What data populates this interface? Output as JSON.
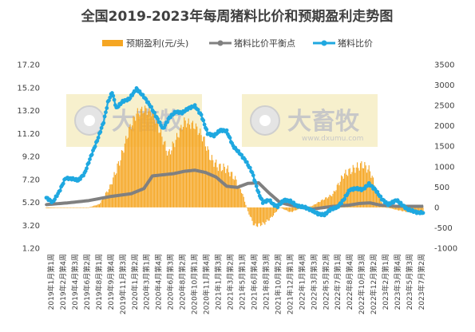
{
  "chart_data": {
    "type": "combo",
    "title": "全国2019-2023年每周猪料比价和预期盈利走势图",
    "legend": {
      "position": "top",
      "items": [
        {
          "name": "预期盈利(元/头)",
          "kind": "bar",
          "color": "#f5a623"
        },
        {
          "name": "猪料比价平衡点",
          "kind": "line",
          "color": "#808080"
        },
        {
          "name": "猪料比价",
          "kind": "line",
          "color": "#1fa8e0"
        }
      ]
    },
    "y_left": {
      "ticks": [
        "17.20",
        "15.20",
        "13.20",
        "11.20",
        "9.20",
        "7.20",
        "5.20",
        "3.20",
        "1.20"
      ],
      "range": [
        1.2,
        17.2
      ]
    },
    "y_right": {
      "ticks": [
        "3500",
        "3000",
        "2500",
        "2000",
        "1500",
        "1000",
        "500",
        "0",
        "-500",
        "-1000"
      ],
      "range": [
        -1000,
        3500
      ]
    },
    "x_labels": [
      "2019年1月第1周",
      "2019年2月第4周",
      "2019年4月第3周",
      "2019年6月第2周",
      "2019年8月第1周",
      "2019年9月第4周",
      "2019年11月第3周",
      "2020年1月第2周",
      "2020年3月第1周",
      "2020年4月第4周",
      "2020年6月第3周",
      "2020年8月第2周",
      "2020年10月第1周",
      "2020年11月第4周",
      "2021年1月第3周",
      "2021年3月第2周",
      "2021年5月第1周",
      "2021年6月第4周",
      "2021年8月第3周",
      "2021年10月第2周",
      "2021年12月第1周",
      "2022年1月第4周",
      "2022年3月第3周",
      "2022年5月第2周",
      "2022年7月第1周",
      "2022年8月第4周",
      "2022年10月第3周",
      "2022年12月第2周",
      "2023年2月第1周",
      "2023年3月第4周",
      "2023年5月第3周",
      "2023年7月第2周"
    ],
    "profit_keypoints": [
      [
        0,
        -20
      ],
      [
        20,
        0
      ],
      [
        40,
        0
      ],
      [
        50,
        80
      ],
      [
        60,
        500
      ],
      [
        70,
        1200
      ],
      [
        78,
        1900
      ],
      [
        85,
        2300
      ],
      [
        92,
        2400
      ],
      [
        100,
        2350
      ],
      [
        108,
        1800
      ],
      [
        115,
        1300
      ],
      [
        122,
        1650
      ],
      [
        130,
        2100
      ],
      [
        140,
        2000
      ],
      [
        148,
        1700
      ],
      [
        155,
        1200
      ],
      [
        162,
        1000
      ],
      [
        170,
        950
      ],
      [
        178,
        700
      ],
      [
        184,
        400
      ],
      [
        190,
        -100
      ],
      [
        196,
        -450
      ],
      [
        205,
        -400
      ],
      [
        212,
        -250
      ],
      [
        220,
        0
      ],
      [
        230,
        -120
      ],
      [
        240,
        -20
      ],
      [
        250,
        30
      ],
      [
        260,
        180
      ],
      [
        270,
        320
      ],
      [
        280,
        800
      ],
      [
        290,
        950
      ],
      [
        298,
        1050
      ],
      [
        305,
        900
      ],
      [
        312,
        350
      ],
      [
        318,
        20
      ],
      [
        330,
        -60
      ],
      [
        342,
        -120
      ],
      [
        355,
        -140
      ]
    ],
    "breakeven_keypoints": [
      [
        0,
        5.0
      ],
      [
        20,
        5.15
      ],
      [
        40,
        5.35
      ],
      [
        60,
        5.7
      ],
      [
        80,
        5.95
      ],
      [
        92,
        6.4
      ],
      [
        100,
        7.5
      ],
      [
        110,
        7.6
      ],
      [
        120,
        7.7
      ],
      [
        130,
        7.9
      ],
      [
        140,
        8.0
      ],
      [
        150,
        7.8
      ],
      [
        160,
        7.4
      ],
      [
        170,
        6.6
      ],
      [
        180,
        6.5
      ],
      [
        190,
        6.85
      ],
      [
        200,
        6.9
      ],
      [
        210,
        6.0
      ],
      [
        220,
        5.2
      ],
      [
        230,
        4.95
      ],
      [
        250,
        4.6
      ],
      [
        270,
        4.85
      ],
      [
        285,
        4.95
      ],
      [
        295,
        5.1
      ],
      [
        305,
        5.15
      ],
      [
        315,
        4.95
      ],
      [
        330,
        4.85
      ],
      [
        355,
        4.85
      ]
    ],
    "ratio_keypoints": [
      [
        0,
        5.6
      ],
      [
        6,
        5.2
      ],
      [
        12,
        6.1
      ],
      [
        18,
        7.3
      ],
      [
        25,
        7.25
      ],
      [
        30,
        7.1
      ],
      [
        36,
        7.7
      ],
      [
        42,
        9.2
      ],
      [
        48,
        10.6
      ],
      [
        54,
        12.2
      ],
      [
        58,
        13.9
      ],
      [
        62,
        14.8
      ],
      [
        66,
        13.4
      ],
      [
        72,
        14.0
      ],
      [
        78,
        14.2
      ],
      [
        85,
        15.1
      ],
      [
        92,
        14.4
      ],
      [
        98,
        13.6
      ],
      [
        104,
        12.6
      ],
      [
        110,
        11.6
      ],
      [
        116,
        12.6
      ],
      [
        122,
        13.1
      ],
      [
        128,
        13.0
      ],
      [
        134,
        13.4
      ],
      [
        140,
        13.6
      ],
      [
        146,
        12.8
      ],
      [
        152,
        11.2
      ],
      [
        158,
        11.0
      ],
      [
        164,
        11.5
      ],
      [
        170,
        11.4
      ],
      [
        176,
        10.1
      ],
      [
        182,
        9.5
      ],
      [
        188,
        8.8
      ],
      [
        194,
        7.8
      ],
      [
        200,
        6.0
      ],
      [
        204,
        5.2
      ],
      [
        210,
        5.4
      ],
      [
        214,
        5.0
      ],
      [
        218,
        4.85
      ],
      [
        224,
        5.4
      ],
      [
        230,
        5.3
      ],
      [
        236,
        4.9
      ],
      [
        244,
        4.75
      ],
      [
        250,
        4.5
      ],
      [
        256,
        4.2
      ],
      [
        262,
        4.1
      ],
      [
        268,
        4.6
      ],
      [
        274,
        4.75
      ],
      [
        280,
        5.4
      ],
      [
        286,
        6.3
      ],
      [
        292,
        6.4
      ],
      [
        298,
        6.3
      ],
      [
        304,
        6.8
      ],
      [
        310,
        6.3
      ],
      [
        316,
        5.5
      ],
      [
        322,
        5.0
      ],
      [
        330,
        5.4
      ],
      [
        340,
        4.6
      ],
      [
        350,
        4.3
      ],
      [
        355,
        4.3
      ]
    ]
  }
}
